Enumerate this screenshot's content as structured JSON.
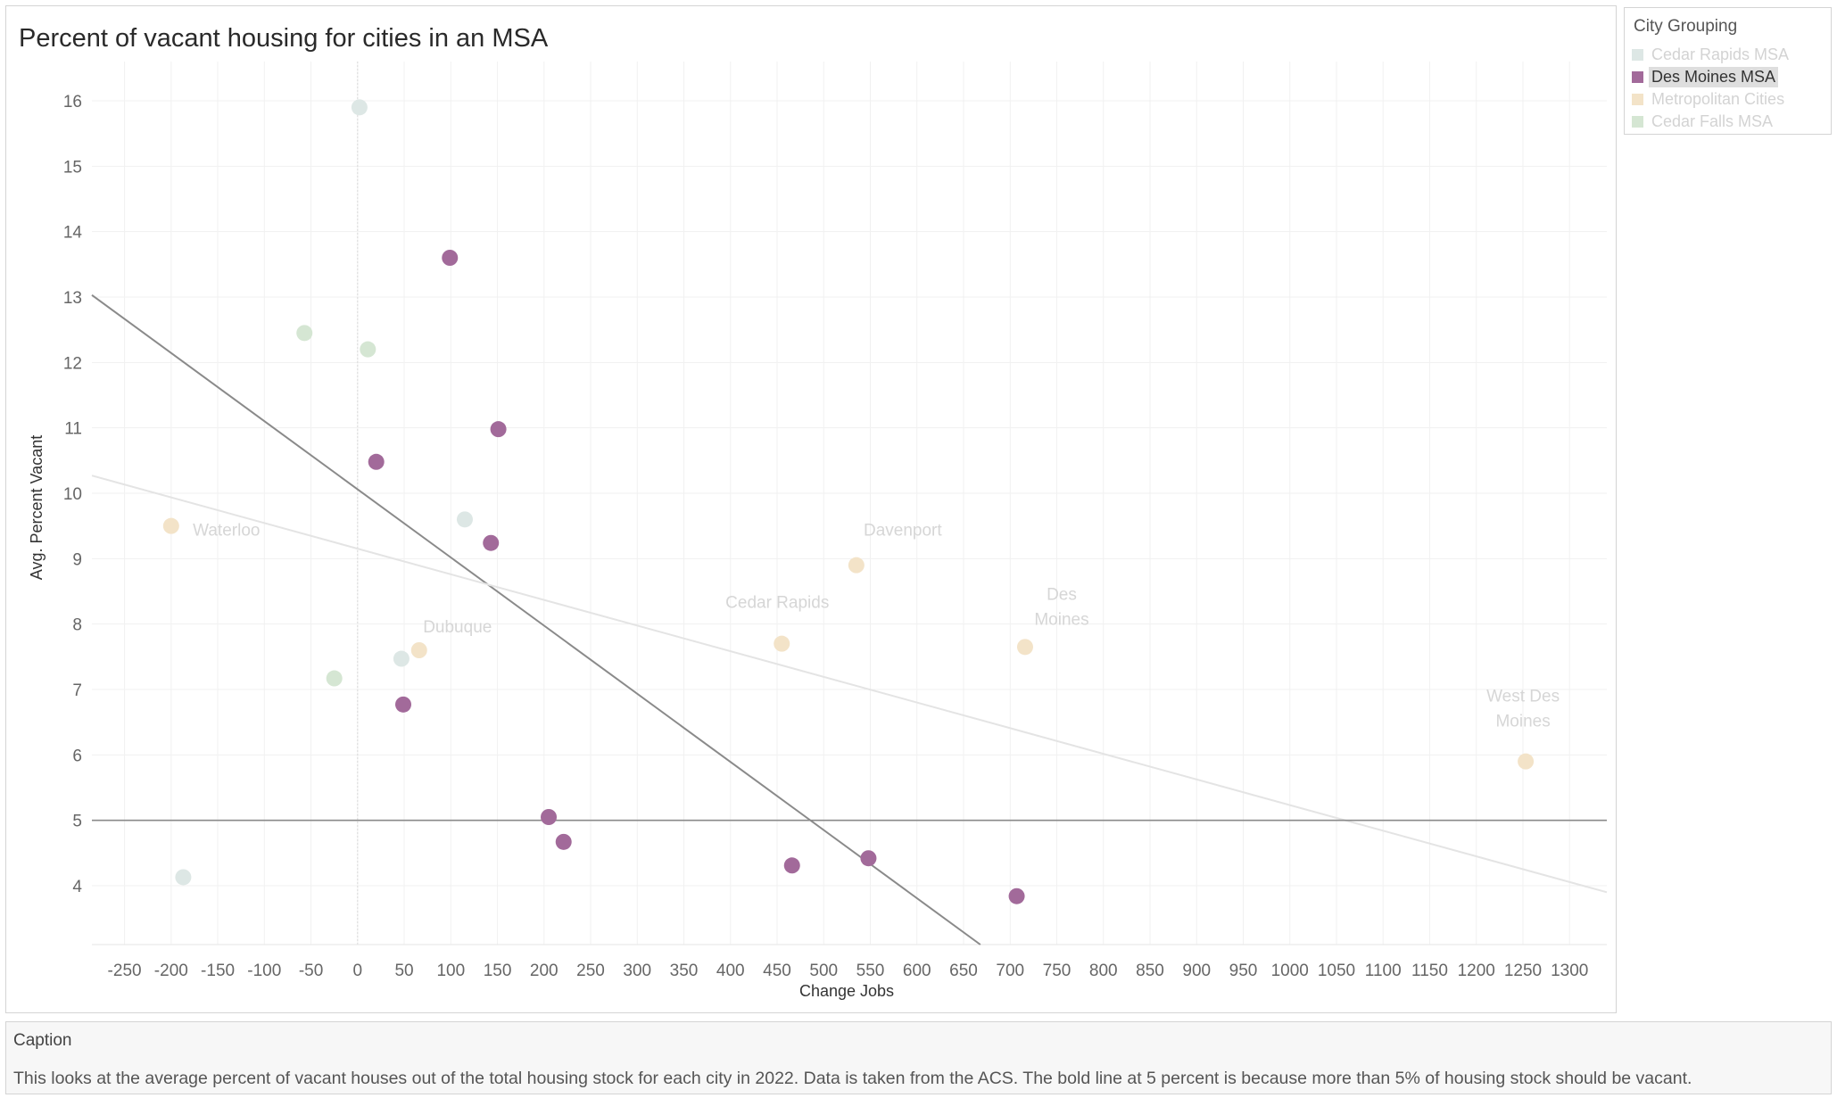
{
  "chart_data": {
    "type": "scatter",
    "title": "Percent of vacant housing for cities in an MSA",
    "xlabel": "Change Jobs",
    "ylabel": "Avg. Percent Vacant",
    "xlim": [
      -285,
      1340
    ],
    "ylim": [
      3.1,
      16.6
    ],
    "xticks": [
      -250,
      -200,
      -150,
      -100,
      -50,
      0,
      50,
      100,
      150,
      200,
      250,
      300,
      350,
      400,
      450,
      500,
      550,
      600,
      650,
      700,
      750,
      800,
      850,
      900,
      950,
      1000,
      1050,
      1100,
      1150,
      1200,
      1250,
      1300
    ],
    "yticks": [
      4,
      5,
      6,
      7,
      8,
      9,
      10,
      11,
      12,
      13,
      14,
      15,
      16
    ],
    "reference_line_y": 5,
    "zero_line_x": 0,
    "grid": true,
    "legend_position": "right",
    "series": [
      {
        "name": "Cedar Rapids MSA",
        "color": "#dde7e5",
        "points": [
          {
            "x": 2,
            "y": 15.9
          },
          {
            "x": 115,
            "y": 9.6
          },
          {
            "x": 47,
            "y": 7.47
          },
          {
            "x": -187,
            "y": 4.13
          }
        ]
      },
      {
        "name": "Des Moines MSA",
        "color": "#a26a9a",
        "points": [
          {
            "x": 99,
            "y": 13.6
          },
          {
            "x": 151,
            "y": 10.98
          },
          {
            "x": 20,
            "y": 10.48
          },
          {
            "x": 143,
            "y": 9.24
          },
          {
            "x": 49,
            "y": 6.77
          },
          {
            "x": 205,
            "y": 5.05
          },
          {
            "x": 221,
            "y": 4.67
          },
          {
            "x": 466,
            "y": 4.31
          },
          {
            "x": 548,
            "y": 4.42
          },
          {
            "x": 707,
            "y": 3.84
          }
        ]
      },
      {
        "name": "Metropolitan Cities",
        "color": "#f3e3c8",
        "points": [
          {
            "x": -200,
            "y": 9.5,
            "label": "Waterloo"
          },
          {
            "x": 66,
            "y": 7.6,
            "label": "Dubuque"
          },
          {
            "x": 455,
            "y": 7.7,
            "label": "Cedar Rapids"
          },
          {
            "x": 535,
            "y": 8.9,
            "label": "Davenport"
          },
          {
            "x": 716,
            "y": 7.65,
            "label": "Des Moines"
          },
          {
            "x": 1253,
            "y": 5.9,
            "label": "West Des Moines"
          }
        ]
      },
      {
        "name": "Cedar Falls MSA",
        "color": "#d5e6d3",
        "points": [
          {
            "x": -57,
            "y": 12.45
          },
          {
            "x": 11,
            "y": 12.2
          },
          {
            "x": -25,
            "y": 7.17
          }
        ]
      }
    ],
    "trend_lines": [
      {
        "series": "Des Moines MSA",
        "color": "#8a8a8a",
        "from": {
          "x": -285,
          "y": 13.03
        },
        "to": {
          "x": 668,
          "y": 3.1
        }
      },
      {
        "series": "Metropolitan Cities",
        "color": "#e4e4e4",
        "from": {
          "x": -285,
          "y": 10.27
        },
        "to": {
          "x": 1340,
          "y": 3.9
        }
      }
    ]
  },
  "legend": {
    "title": "City Grouping",
    "items": [
      {
        "label": "Cedar Rapids MSA",
        "color": "#dde7e5",
        "state": "dim"
      },
      {
        "label": "Des Moines MSA",
        "color": "#a26a9a",
        "state": "active"
      },
      {
        "label": "Metropolitan Cities",
        "color": "#f3e3c8",
        "state": "dim"
      },
      {
        "label": "Cedar Falls MSA",
        "color": "#d5e6d3",
        "state": "dim"
      }
    ]
  },
  "caption": {
    "title": "Caption",
    "text": "This looks at the average percent of vacant houses out of the total housing stock for each city in 2022. Data is taken from the ACS. The bold line at 5 percent is because more than 5% of housing stock should be vacant."
  }
}
